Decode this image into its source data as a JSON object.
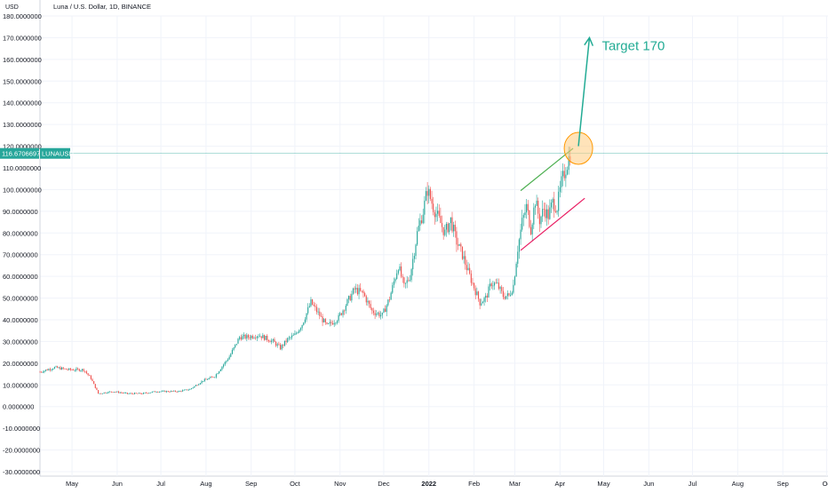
{
  "chart_data": {
    "type": "candlestick",
    "title": "Luna / U.S. Dollar, 1D, BINANCE",
    "y_unit": "USD",
    "ylim": [
      -30,
      180
    ],
    "y_ticks": [
      {
        "value": 180,
        "label": "180.0000000"
      },
      {
        "value": 170,
        "label": "170.0000000"
      },
      {
        "value": 160,
        "label": "160.0000000"
      },
      {
        "value": 150,
        "label": "150.0000000"
      },
      {
        "value": 140,
        "label": "140.0000000"
      },
      {
        "value": 130,
        "label": "130.0000000"
      },
      {
        "value": 120,
        "label": "120.0000000"
      },
      {
        "value": 110,
        "label": "110.0000000"
      },
      {
        "value": 100,
        "label": "100.0000000"
      },
      {
        "value": 90,
        "label": "90.0000000"
      },
      {
        "value": 80,
        "label": "80.0000000"
      },
      {
        "value": 70,
        "label": "70.0000000"
      },
      {
        "value": 60,
        "label": "60.0000000"
      },
      {
        "value": 50,
        "label": "50.0000000"
      },
      {
        "value": 40,
        "label": "40.0000000"
      },
      {
        "value": 30,
        "label": "30.0000000"
      },
      {
        "value": 20,
        "label": "20.0000000"
      },
      {
        "value": 10,
        "label": "10.0000000"
      },
      {
        "value": 0,
        "label": "0.0000000"
      },
      {
        "value": -10,
        "label": "-10.0000000"
      },
      {
        "value": -20,
        "label": "-20.0000000"
      },
      {
        "value": -30,
        "label": "-30.0000000"
      }
    ],
    "x_ticks": [
      {
        "day": 22,
        "label": "May",
        "bold": false
      },
      {
        "day": 53,
        "label": "Jun",
        "bold": false
      },
      {
        "day": 83,
        "label": "Jul",
        "bold": false
      },
      {
        "day": 114,
        "label": "Aug",
        "bold": false
      },
      {
        "day": 145,
        "label": "Sep",
        "bold": false
      },
      {
        "day": 175,
        "label": "Oct",
        "bold": false
      },
      {
        "day": 206,
        "label": "Nov",
        "bold": false
      },
      {
        "day": 236,
        "label": "Dec",
        "bold": false
      },
      {
        "day": 267,
        "label": "2022",
        "bold": true
      },
      {
        "day": 298,
        "label": "Feb",
        "bold": false
      },
      {
        "day": 326,
        "label": "Mar",
        "bold": false
      },
      {
        "day": 357,
        "label": "Apr",
        "bold": false
      },
      {
        "day": 387,
        "label": "May",
        "bold": false
      },
      {
        "day": 418,
        "label": "Jun",
        "bold": false
      },
      {
        "day": 448,
        "label": "Jul",
        "bold": false
      },
      {
        "day": 479,
        "label": "Aug",
        "bold": false
      },
      {
        "day": 510,
        "label": "Sep",
        "bold": false
      },
      {
        "day": 540,
        "label": "Oc",
        "bold": false
      }
    ],
    "x_range_days": [
      0,
      541
    ],
    "last_price": 116.6706697,
    "last_price_label": "116.6706697",
    "symbol": "LUNAUSD",
    "series_keypoints": [
      {
        "day": 0,
        "close": 16
      },
      {
        "day": 10,
        "close": 18
      },
      {
        "day": 20,
        "close": 17
      },
      {
        "day": 30,
        "close": 17
      },
      {
        "day": 35,
        "close": 13
      },
      {
        "day": 40,
        "close": 6
      },
      {
        "day": 50,
        "close": 7
      },
      {
        "day": 60,
        "close": 6
      },
      {
        "day": 70,
        "close": 6
      },
      {
        "day": 80,
        "close": 7
      },
      {
        "day": 95,
        "close": 7
      },
      {
        "day": 103,
        "close": 8
      },
      {
        "day": 112,
        "close": 12
      },
      {
        "day": 120,
        "close": 14
      },
      {
        "day": 130,
        "close": 23
      },
      {
        "day": 137,
        "close": 32
      },
      {
        "day": 142,
        "close": 32
      },
      {
        "day": 150,
        "close": 33
      },
      {
        "day": 160,
        "close": 30
      },
      {
        "day": 165,
        "close": 27
      },
      {
        "day": 170,
        "close": 31
      },
      {
        "day": 175,
        "close": 33
      },
      {
        "day": 180,
        "close": 38
      },
      {
        "day": 186,
        "close": 48
      },
      {
        "day": 192,
        "close": 42
      },
      {
        "day": 197,
        "close": 37
      },
      {
        "day": 205,
        "close": 41
      },
      {
        "day": 210,
        "close": 47
      },
      {
        "day": 216,
        "close": 54
      },
      {
        "day": 222,
        "close": 52
      },
      {
        "day": 228,
        "close": 44
      },
      {
        "day": 235,
        "close": 42
      },
      {
        "day": 240,
        "close": 50
      },
      {
        "day": 246,
        "close": 65
      },
      {
        "day": 250,
        "close": 55
      },
      {
        "day": 254,
        "close": 60
      },
      {
        "day": 259,
        "close": 80
      },
      {
        "day": 263,
        "close": 90
      },
      {
        "day": 266,
        "close": 100
      },
      {
        "day": 270,
        "close": 92
      },
      {
        "day": 274,
        "close": 86
      },
      {
        "day": 278,
        "close": 80
      },
      {
        "day": 282,
        "close": 86
      },
      {
        "day": 286,
        "close": 76
      },
      {
        "day": 290,
        "close": 70
      },
      {
        "day": 294,
        "close": 62
      },
      {
        "day": 298,
        "close": 55
      },
      {
        "day": 302,
        "close": 48
      },
      {
        "day": 306,
        "close": 50
      },
      {
        "day": 310,
        "close": 57
      },
      {
        "day": 314,
        "close": 56
      },
      {
        "day": 318,
        "close": 51
      },
      {
        "day": 322,
        "close": 51
      },
      {
        "day": 325,
        "close": 56
      },
      {
        "day": 328,
        "close": 73
      },
      {
        "day": 331,
        "close": 85
      },
      {
        "day": 334,
        "close": 92
      },
      {
        "day": 337,
        "close": 82
      },
      {
        "day": 340,
        "close": 95
      },
      {
        "day": 343,
        "close": 86
      },
      {
        "day": 346,
        "close": 91
      },
      {
        "day": 349,
        "close": 88
      },
      {
        "day": 352,
        "close": 94
      },
      {
        "day": 355,
        "close": 92
      },
      {
        "day": 358,
        "close": 103
      },
      {
        "day": 361,
        "close": 110
      },
      {
        "day": 364,
        "close": 116.67
      }
    ],
    "annotations": {
      "target_text": "Target 170",
      "target_value": 170,
      "upper_trendline": {
        "x1": 330,
        "y1": 99.5,
        "x2": 366,
        "y2": 119
      },
      "lower_trendline": {
        "x1": 330,
        "y1": 72,
        "x2": 374,
        "y2": 96
      },
      "target_arrow": {
        "x1": 366,
        "y1": 120,
        "x2": 376,
        "y2": 170
      },
      "highlight_circle": {
        "x": 366,
        "y": 119
      }
    },
    "colors": {
      "up": "#26a69a",
      "down": "#ef5350",
      "target": "#22ab94",
      "upper_trendline": "#4caf50",
      "lower_trendline": "#e91e63",
      "highlight_fill": "#ffcc80",
      "highlight_stroke": "#ff9800",
      "price_line": "#26a69a",
      "grid": "#f0f3fa"
    },
    "grid": true
  }
}
